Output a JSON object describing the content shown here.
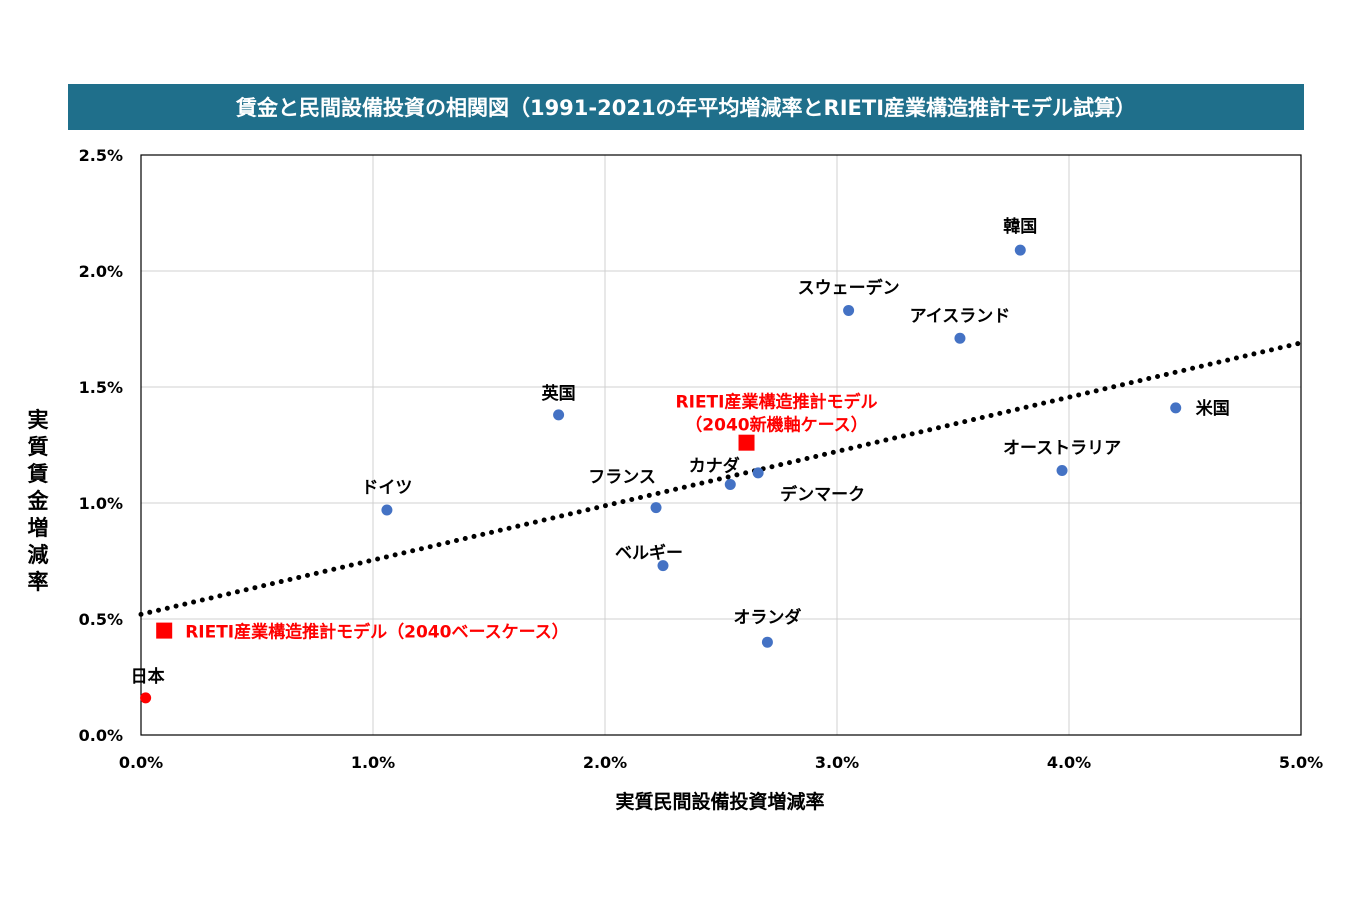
{
  "chart_data": {
    "type": "scatter",
    "title": "賃金と民間設備投資の相関図（1991-2021の年平均増減率とRIETI産業構造推計モデル試算）",
    "xlabel": "実質民間設備投資増減率",
    "ylabel": "実質賃金増減率",
    "xlim": [
      0,
      5
    ],
    "ylim": [
      0,
      2.5
    ],
    "x_ticks": [
      {
        "value": 0,
        "label": "0.0%"
      },
      {
        "value": 1,
        "label": "1.0%"
      },
      {
        "value": 2,
        "label": "2.0%"
      },
      {
        "value": 3,
        "label": "3.0%"
      },
      {
        "value": 4,
        "label": "4.0%"
      },
      {
        "value": 5,
        "label": "5.0%"
      }
    ],
    "y_ticks": [
      {
        "value": 0,
        "label": "0.0%"
      },
      {
        "value": 0.5,
        "label": "0.5%"
      },
      {
        "value": 1,
        "label": "1.0%"
      },
      {
        "value": 1.5,
        "label": "1.5%"
      },
      {
        "value": 2,
        "label": "2.0%"
      },
      {
        "value": 2.5,
        "label": "2.5%"
      }
    ],
    "grid": true,
    "colors": {
      "countries": "#4472c4",
      "japan": "#ff0000",
      "model": "#ff0000",
      "trendline": "#000000",
      "title_bg": "#1f6f8b"
    },
    "points": [
      {
        "label": "韓国",
        "x": 3.79,
        "y": 2.09
      },
      {
        "label": "スウェーデン",
        "x": 3.05,
        "y": 1.83
      },
      {
        "label": "アイスランド",
        "x": 3.53,
        "y": 1.71
      },
      {
        "label": "英国",
        "x": 1.8,
        "y": 1.38
      },
      {
        "label": "米国",
        "x": 4.46,
        "y": 1.41
      },
      {
        "label": "オーストラリア",
        "x": 3.97,
        "y": 1.14
      },
      {
        "label": "カナダ",
        "x": 2.54,
        "y": 1.08
      },
      {
        "label": "デンマーク",
        "x": 2.66,
        "y": 1.13
      },
      {
        "label": "フランス",
        "x": 2.22,
        "y": 0.98
      },
      {
        "label": "ドイツ",
        "x": 1.06,
        "y": 0.97
      },
      {
        "label": "ベルギー",
        "x": 2.25,
        "y": 0.73
      },
      {
        "label": "オランダ",
        "x": 2.7,
        "y": 0.4
      },
      {
        "label": "日本",
        "x": 0.02,
        "y": 0.16
      }
    ],
    "model_points": [
      {
        "label_lines": [
          "RIETI産業構造推計モデル",
          "（2040新機軸ケース）"
        ],
        "x": 2.61,
        "y": 1.26
      },
      {
        "label_lines": [
          "RIETI産業構造推計モデル（2040ベースケース）"
        ],
        "x": 0.1,
        "y": 0.45
      }
    ],
    "trendline": {
      "style": "dotted",
      "x": [
        0,
        5
      ],
      "y": [
        0.52,
        1.69
      ]
    }
  }
}
